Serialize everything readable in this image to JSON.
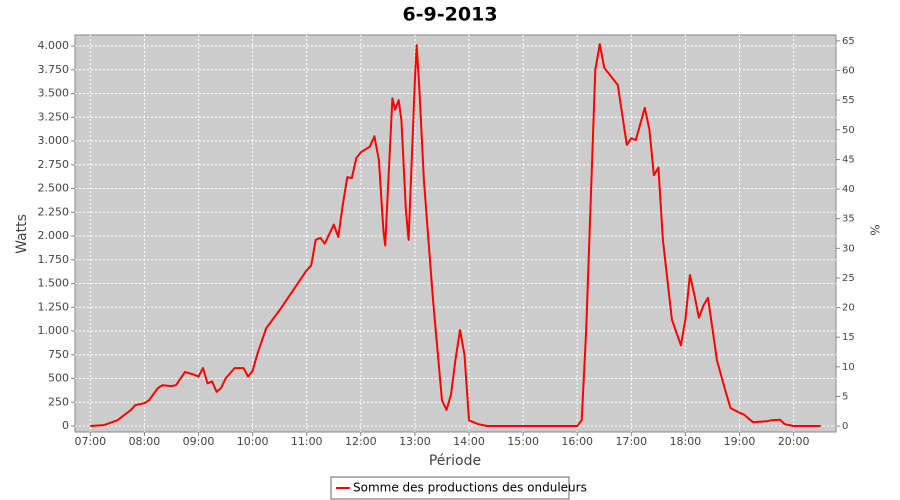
{
  "chart_data": {
    "type": "line",
    "title": "6-9-2013",
    "xlabel": "Période",
    "ylabel": "Watts",
    "y2label": "%",
    "x": [
      "07:00",
      "07:15",
      "07:30",
      "07:45",
      "07:50",
      "08:00",
      "08:05",
      "08:15",
      "08:20",
      "08:30",
      "08:35",
      "08:45",
      "08:55",
      "09:00",
      "09:05",
      "09:10",
      "09:15",
      "09:20",
      "09:25",
      "09:30",
      "09:40",
      "09:50",
      "09:55",
      "10:00",
      "10:05",
      "10:15",
      "10:30",
      "10:45",
      "11:00",
      "11:05",
      "11:10",
      "11:15",
      "11:20",
      "11:30",
      "11:35",
      "11:40",
      "11:45",
      "11:50",
      "11:55",
      "12:00",
      "12:10",
      "12:15",
      "12:20",
      "12:25",
      "12:27",
      "12:35",
      "12:38",
      "12:42",
      "12:45",
      "12:50",
      "12:53",
      "13:00",
      "13:02",
      "13:05",
      "13:10",
      "13:20",
      "13:30",
      "13:35",
      "13:40",
      "13:45",
      "13:50",
      "13:55",
      "14:00",
      "14:10",
      "14:20",
      "15:00",
      "16:00",
      "16:05",
      "16:10",
      "16:20",
      "16:25",
      "16:30",
      "16:45",
      "16:55",
      "17:00",
      "17:05",
      "17:15",
      "17:20",
      "17:25",
      "17:30",
      "17:35",
      "17:45",
      "17:55",
      "18:00",
      "18:05",
      "18:10",
      "18:15",
      "18:20",
      "18:25",
      "18:35",
      "18:45",
      "18:50",
      "19:00",
      "19:05",
      "19:15",
      "19:30",
      "19:35",
      "19:45",
      "19:50",
      "20:00",
      "20:30"
    ],
    "series": [
      {
        "name": "Somme des productions des onduleurs",
        "color": "#ff0000",
        "values": [
          0,
          10,
          60,
          170,
          220,
          240,
          270,
          400,
          430,
          420,
          430,
          570,
          540,
          520,
          610,
          450,
          470,
          360,
          400,
          500,
          610,
          610,
          520,
          580,
          750,
          1030,
          1220,
          1430,
          1640,
          1690,
          1960,
          1980,
          1920,
          2120,
          1990,
          2330,
          2620,
          2610,
          2820,
          2880,
          2940,
          3050,
          2800,
          2060,
          1900,
          3450,
          3330,
          3430,
          3220,
          2270,
          1960,
          3640,
          4010,
          3540,
          2590,
          1330,
          270,
          170,
          330,
          700,
          1010,
          750,
          60,
          20,
          0,
          0,
          0,
          60,
          1010,
          3750,
          4020,
          3770,
          3590,
          2960,
          3030,
          3010,
          3350,
          3120,
          2640,
          2720,
          1960,
          1120,
          850,
          1120,
          1590,
          1380,
          1140,
          1270,
          1350,
          690,
          350,
          190,
          140,
          120,
          40,
          50,
          60,
          65,
          20,
          0,
          0
        ]
      }
    ],
    "xlim": [
      "06:43",
      "20:47"
    ],
    "xticks": [
      "07:00",
      "08:00",
      "09:00",
      "10:00",
      "11:00",
      "12:00",
      "13:00",
      "14:00",
      "15:00",
      "16:00",
      "17:00",
      "18:00",
      "19:00",
      "20:00"
    ],
    "ylim": [
      -63,
      4116
    ],
    "yticks": [
      0,
      250,
      500,
      750,
      {
        "value": 1000,
        "label": "1.000"
      },
      {
        "value": 1250,
        "label": "1.250"
      },
      {
        "value": 1500,
        "label": "1.500"
      },
      {
        "value": 1750,
        "label": "1.750"
      },
      {
        "value": 2000,
        "label": "2.000"
      },
      {
        "value": 2250,
        "label": "2.250"
      },
      {
        "value": 2500,
        "label": "2.500"
      },
      {
        "value": 2750,
        "label": "2.750"
      },
      {
        "value": 3000,
        "label": "3.000"
      },
      {
        "value": 3250,
        "label": "3.250"
      },
      {
        "value": 3500,
        "label": "3.500"
      },
      {
        "value": 3750,
        "label": "3.750"
      },
      {
        "value": 4000,
        "label": "4.000"
      }
    ],
    "y2lim": [
      -1,
      66
    ],
    "y2ticks": [
      0,
      5,
      10,
      15,
      20,
      25,
      30,
      35,
      40,
      45,
      50,
      55,
      60,
      65
    ],
    "grid": true
  }
}
